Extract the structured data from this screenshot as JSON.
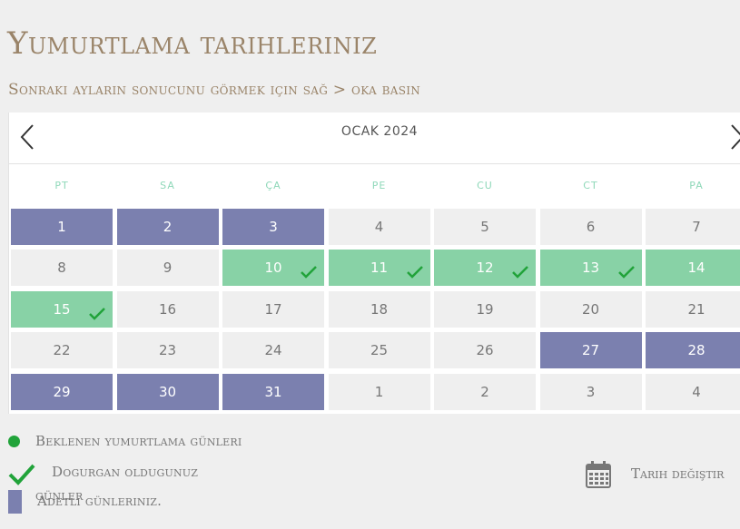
{
  "title": "Yumurtlama tarihleriniz",
  "subtitle": "Sonraki ayların sonucunu görmek için sağ > oka basın",
  "calendar": {
    "month_label": "OCAK 2024",
    "prev_icon": "chevron-left-icon",
    "next_icon": "chevron-right-icon",
    "weekdays": [
      "PT",
      "SA",
      "ÇA",
      "PE",
      "CU",
      "CT",
      "PA"
    ],
    "weeks": [
      [
        {
          "d": "1",
          "t": "period"
        },
        {
          "d": "2",
          "t": "period"
        },
        {
          "d": "3",
          "t": "period"
        },
        {
          "d": "4",
          "t": ""
        },
        {
          "d": "5",
          "t": ""
        },
        {
          "d": "6",
          "t": ""
        },
        {
          "d": "7",
          "t": ""
        }
      ],
      [
        {
          "d": "8",
          "t": ""
        },
        {
          "d": "9",
          "t": ""
        },
        {
          "d": "10",
          "t": "fertile",
          "check": true
        },
        {
          "d": "11",
          "t": "fertile",
          "check": true
        },
        {
          "d": "12",
          "t": "fertile",
          "check": true
        },
        {
          "d": "13",
          "t": "fertile",
          "check": true
        },
        {
          "d": "14",
          "t": "fertile",
          "dot": true
        }
      ],
      [
        {
          "d": "15",
          "t": "fertile",
          "check": true
        },
        {
          "d": "16",
          "t": ""
        },
        {
          "d": "17",
          "t": ""
        },
        {
          "d": "18",
          "t": ""
        },
        {
          "d": "19",
          "t": ""
        },
        {
          "d": "20",
          "t": ""
        },
        {
          "d": "21",
          "t": ""
        }
      ],
      [
        {
          "d": "22",
          "t": ""
        },
        {
          "d": "23",
          "t": ""
        },
        {
          "d": "24",
          "t": ""
        },
        {
          "d": "25",
          "t": ""
        },
        {
          "d": "26",
          "t": ""
        },
        {
          "d": "27",
          "t": "period"
        },
        {
          "d": "28",
          "t": "period"
        }
      ],
      [
        {
          "d": "29",
          "t": "period"
        },
        {
          "d": "30",
          "t": "period"
        },
        {
          "d": "31",
          "t": "period"
        },
        {
          "d": "1",
          "t": ""
        },
        {
          "d": "2",
          "t": ""
        },
        {
          "d": "3",
          "t": ""
        },
        {
          "d": "4",
          "t": ""
        }
      ]
    ]
  },
  "legend": {
    "expected_ovulation": "Beklenen yumurtlama günleri",
    "fertile_line1": "Dogurgan oldugunuz",
    "fertile_line2": "günler",
    "period_days": "Adetli günleriniz."
  },
  "change_date": {
    "label": "Tarih değiştir",
    "icon": "calendar-icon"
  },
  "colors": {
    "period": "#7b80af",
    "fertile": "#88d2a6",
    "check": "#21a33a",
    "heading": "#9a8469",
    "weekday": "#8fd8b9"
  }
}
